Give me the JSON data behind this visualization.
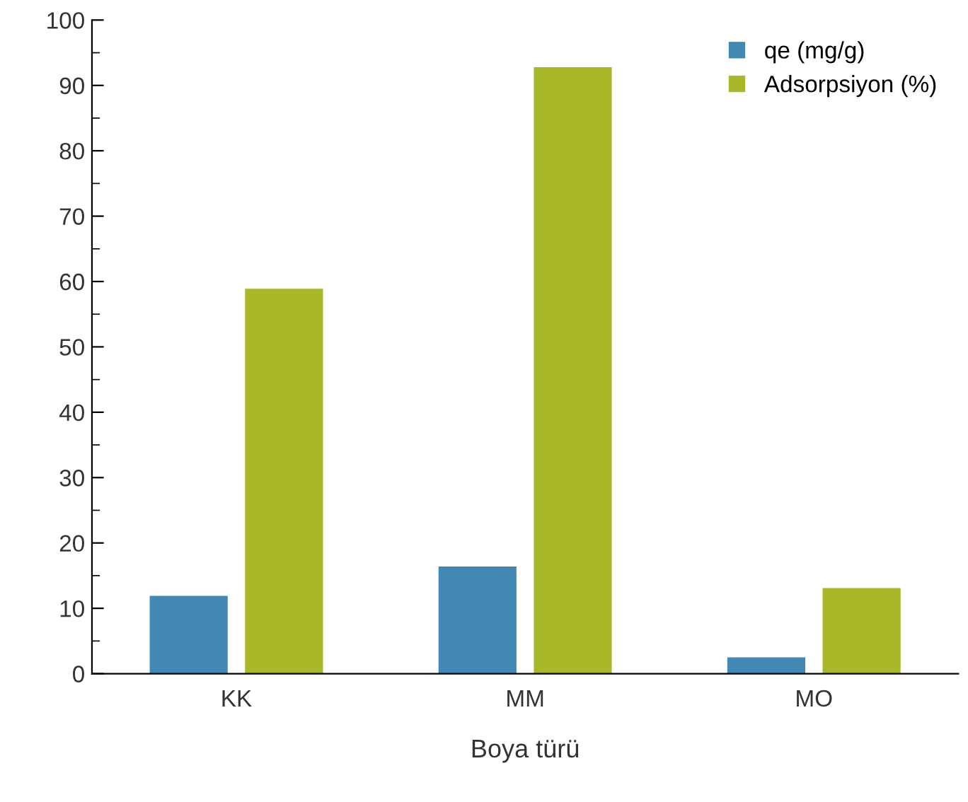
{
  "chart_data": {
    "type": "bar",
    "xlabel": "Boya türü",
    "categories": [
      "KK",
      "MM",
      "MO"
    ],
    "series": [
      {
        "name": "qe (mg/g)",
        "color": "#4188b4",
        "values": [
          11.9,
          16.4,
          2.5
        ]
      },
      {
        "name": "Adsorpsiyon (%)",
        "color": "#a8b829",
        "values": [
          58.9,
          92.8,
          13.1
        ]
      }
    ],
    "ylim": [
      0,
      100
    ],
    "yticks": [
      0,
      {
        "value": 5,
        "label": null
      },
      10,
      {
        "value": 15,
        "label": null
      },
      20,
      {
        "value": 25,
        "label": null
      },
      30,
      {
        "value": 35,
        "label": null
      },
      40,
      {
        "value": 45,
        "label": null
      },
      50,
      {
        "value": 55,
        "label": null
      },
      60,
      {
        "value": 65,
        "label": null
      },
      70,
      {
        "value": 75,
        "label": null
      },
      80,
      {
        "value": 85,
        "label": null
      },
      90,
      {
        "value": 95,
        "label": null
      },
      100
    ],
    "grid": false,
    "legend": "top right"
  }
}
